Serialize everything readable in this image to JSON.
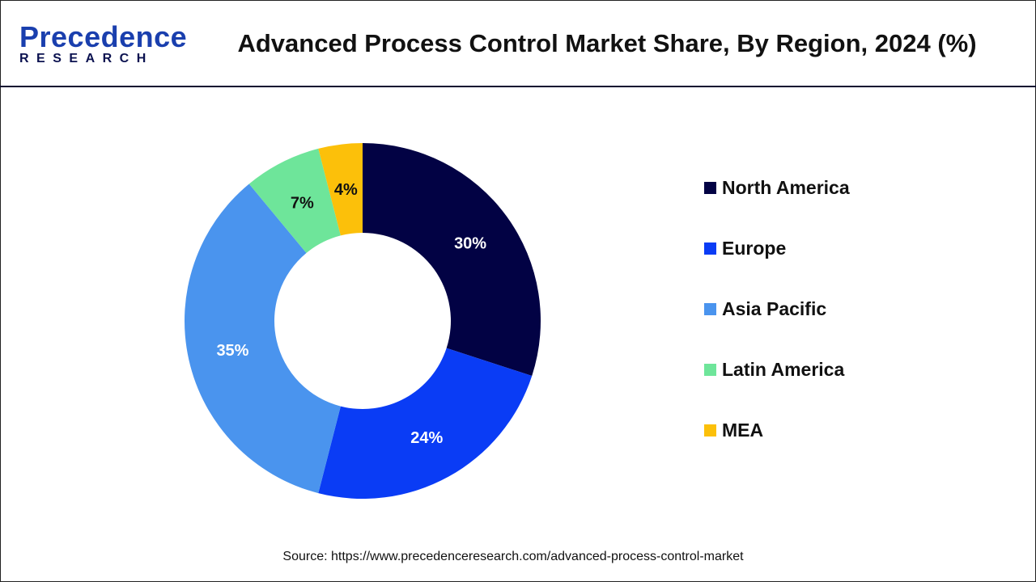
{
  "header": {
    "logo_line1": "Precedence",
    "logo_line2": "RESEARCH",
    "title": "Advanced Process Control Market Share, By Region, 2024 (%)"
  },
  "chart_data": {
    "type": "pie",
    "variant": "donut",
    "title": "Advanced Process Control Market Share, By Region, 2024 (%)",
    "categories": [
      "North America",
      "Europe",
      "Asia Pacific",
      "Latin America",
      "MEA"
    ],
    "values": [
      30,
      24,
      35,
      7,
      4
    ],
    "labels": [
      "30%",
      "24%",
      "35%",
      "7%",
      "4%"
    ],
    "colors": [
      "#020244",
      "#0a3cf5",
      "#4a94ee",
      "#6ee59a",
      "#fcc00a"
    ],
    "label_colors": [
      "#ffffff",
      "#ffffff",
      "#ffffff",
      "#111111",
      "#111111"
    ],
    "legend_position": "right"
  },
  "source": "Source: https://www.precedenceresearch.com/advanced-process-control-market"
}
